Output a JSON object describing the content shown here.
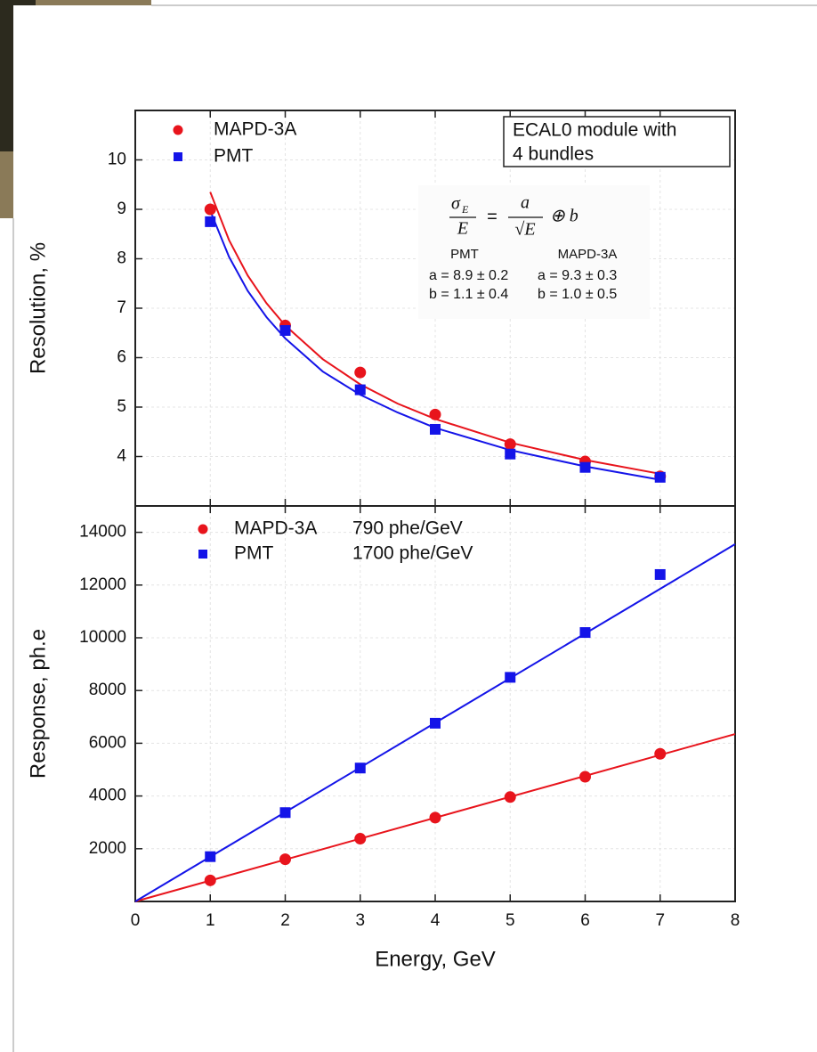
{
  "chart_data": [
    {
      "type": "scatter",
      "ylabel": "Resolution, %",
      "x": [
        1,
        2,
        3,
        4,
        5,
        6,
        7
      ],
      "series": [
        {
          "name": "MAPD-3A",
          "color": "#e8141c",
          "marker": "circle",
          "values": [
            9.0,
            6.65,
            5.7,
            4.85,
            4.25,
            3.9,
            3.6
          ]
        },
        {
          "name": "PMT",
          "color": "#1414e8",
          "marker": "square",
          "values": [
            8.75,
            6.55,
            5.35,
            4.55,
            4.05,
            3.78,
            3.58
          ]
        }
      ],
      "fits": [
        {
          "color": "#e8141c",
          "x": [
            1,
            1.25,
            1.5,
            1.75,
            2,
            2.5,
            3,
            3.5,
            4,
            5,
            6,
            7
          ],
          "values": [
            9.35,
            8.38,
            7.66,
            7.1,
            6.65,
            5.97,
            5.46,
            5.07,
            4.76,
            4.28,
            3.93,
            3.65
          ]
        },
        {
          "color": "#1414e8",
          "x": [
            1,
            1.25,
            1.5,
            1.75,
            2,
            2.5,
            3,
            3.5,
            4,
            5,
            6,
            7
          ],
          "values": [
            8.97,
            8.04,
            7.35,
            6.82,
            6.39,
            5.72,
            5.25,
            4.89,
            4.58,
            4.13,
            3.8,
            3.53
          ]
        }
      ],
      "annotation": [
        "ECAL0 module with",
        "4 bundles"
      ],
      "formula": {
        "sigma": "σ",
        "sub": "E",
        "den1": "E",
        "eq": "=",
        "num2": "a",
        "den2": "√E",
        "rest": "⊕ b"
      },
      "fit_table": {
        "headers": [
          "PMT",
          "MAPD-3A"
        ],
        "rows": [
          [
            "a = 8.9 ± 0.2",
            "a = 9.3 ± 0.3"
          ],
          [
            "b = 1.1 ± 0.4",
            "b = 1.0 ± 0.5"
          ]
        ]
      },
      "xlim": [
        0,
        8
      ],
      "xticks": [
        0,
        1,
        2,
        3,
        4,
        5,
        6,
        7,
        8
      ],
      "ylim": [
        3,
        11
      ],
      "yticks": [
        4,
        5,
        6,
        7,
        8,
        9,
        10
      ],
      "grid": true
    },
    {
      "type": "scatter",
      "xlabel": "Energy, GeV",
      "ylabel": "Response, ph.e",
      "x": [
        1,
        2,
        3,
        4,
        5,
        6,
        7
      ],
      "series": [
        {
          "name": "MAPD-3A",
          "note": "790 phe/GeV",
          "color": "#e8141c",
          "marker": "circle",
          "values": [
            800,
            1600,
            2380,
            3180,
            3960,
            4730,
            5600
          ]
        },
        {
          "name": "PMT",
          "note": "1700 phe/GeV",
          "color": "#1414e8",
          "marker": "square",
          "values": [
            1700,
            3370,
            5060,
            6760,
            8500,
            10200,
            12400
          ]
        }
      ],
      "fits": [
        {
          "color": "#e8141c",
          "x": [
            0,
            8
          ],
          "values": [
            0,
            6350
          ]
        },
        {
          "color": "#1414e8",
          "x": [
            0,
            8
          ],
          "values": [
            0,
            13550
          ]
        }
      ],
      "xlim": [
        0,
        8
      ],
      "xticks": [
        0,
        1,
        2,
        3,
        4,
        5,
        6,
        7,
        8
      ],
      "ylim": [
        0,
        15000
      ],
      "yticks": [
        2000,
        4000,
        6000,
        8000,
        10000,
        12000,
        14000
      ],
      "grid": true
    }
  ]
}
